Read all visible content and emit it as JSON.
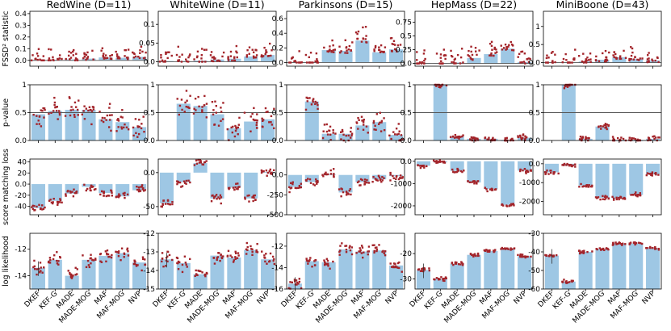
{
  "colors": {
    "bar": "#9ec7e4",
    "point": "#a3242a",
    "axis": "#000000",
    "refline": "#555555"
  },
  "chart_data": {
    "type": "bar",
    "title": "",
    "categories": [
      "DKEF",
      "KEF-G",
      "MADE",
      "MADE-MOG",
      "MAF",
      "MAF-MOG",
      "NVP"
    ],
    "datasets": [
      "RedWine (D=11)",
      "WhiteWine (D=11)",
      "Parkinsons (D=15)",
      "HepMass (D=22)",
      "MiniBoone (D=43)"
    ],
    "metrics": [
      {
        "name": "fssd",
        "ylabel": "FSSD² statistic",
        "panels": [
          {
            "ylim": [
              -0.05,
              0.42
            ],
            "yticks": [
              0.0,
              0.1,
              0.2,
              0.3,
              0.4
            ],
            "ref": 0.0,
            "values": [
              0.004,
              0.005,
              0.008,
              0.015,
              0.025,
              0.022,
              0.03
            ],
            "spread": 0.05
          },
          {
            "ylim": [
              -0.012,
              0.135
            ],
            "yticks": [
              0.0,
              0.05,
              0.1
            ],
            "ref": 0.0,
            "values": [
              0.002,
              0.002,
              0.003,
              0.006,
              0.008,
              0.014,
              0.018
            ],
            "spread": 0.02
          },
          {
            "ylim": [
              -0.05,
              0.7
            ],
            "yticks": [
              0.0,
              0.2,
              0.4,
              0.6
            ],
            "ref": 0.0,
            "values": [
              0.005,
              0.006,
              0.17,
              0.16,
              0.3,
              0.14,
              0.18
            ],
            "spread": 0.12
          },
          {
            "ylim": [
              -0.05,
              0.95
            ],
            "yticks": [
              0.0,
              0.25,
              0.5,
              0.75
            ],
            "ref": 0.0,
            "values": [
              0.008,
              0.006,
              0.018,
              0.1,
              0.17,
              0.27,
              0.025
            ],
            "spread": 0.15
          },
          {
            "ylim": [
              -0.1,
              1.42
            ],
            "yticks": [
              0.0,
              0.5,
              1.0
            ],
            "ref": 0.0,
            "values": [
              0.005,
              0.004,
              0.03,
              0.08,
              0.15,
              0.1,
              0.06
            ],
            "spread": 0.2
          }
        ]
      },
      {
        "name": "pvalue",
        "ylabel": "p-value",
        "panels": [
          {
            "ylim": [
              0.0,
              1.0
            ],
            "yticks": [
              0.0,
              0.5,
              1.0
            ],
            "ref": 0.5,
            "values": [
              0.47,
              0.53,
              0.55,
              0.55,
              0.38,
              0.33,
              0.24
            ],
            "spread": 0.35
          },
          {
            "ylim": [
              0.0,
              1.0
            ],
            "yticks": [
              0.0,
              0.5,
              1.0
            ],
            "ref": 0.5,
            "values": [
              null,
              0.66,
              0.62,
              0.47,
              0.22,
              0.34,
              0.38
            ],
            "spread": 0.35
          },
          {
            "ylim": [
              0.0,
              1.0
            ],
            "yticks": [
              0.0,
              0.5,
              1.0
            ],
            "ref": 0.5,
            "values": [
              null,
              0.7,
              0.12,
              0.12,
              0.27,
              0.33,
              0.1
            ],
            "spread": 0.25
          },
          {
            "ylim": [
              0.0,
              1.0
            ],
            "yticks": [
              0.0,
              0.5,
              1.0
            ],
            "ref": 0.5,
            "values": [
              null,
              1.0,
              0.07,
              0.03,
              0.03,
              0.0,
              0.05
            ],
            "spread": 0.08
          },
          {
            "ylim": [
              0.0,
              1.0
            ],
            "yticks": [
              0.0,
              0.5,
              1.0
            ],
            "ref": 0.5,
            "values": [
              null,
              1.0,
              0.03,
              0.25,
              0.0,
              0.0,
              0.03
            ],
            "spread": 0.08
          }
        ]
      },
      {
        "name": "scorematch",
        "ylabel": "score matching loss",
        "panels": [
          {
            "ylim": [
              -55,
              45
            ],
            "yticks": [
              -40,
              -20,
              0,
              20,
              40
            ],
            "ref": null,
            "values": [
              -43,
              -30,
              -17,
              -5,
              -16,
              -22,
              -11
            ],
            "spread": 10
          },
          {
            "ylim": [
              -62,
              20
            ],
            "yticks": [
              -50,
              0
            ],
            "ref": null,
            "values": [
              -45,
              -14,
              14,
              -38,
              -22,
              -38,
              1
            ],
            "spread": 9
          },
          {
            "ylim": [
              -500,
              200
            ],
            "yticks": [
              -500,
              -250,
              0
            ],
            "ref": null,
            "values": [
              -150,
              -90,
              5,
              -220,
              -90,
              -55,
              -15
            ],
            "spread": 80
          },
          {
            "ylim": [
              -2400,
              100
            ],
            "yticks": [
              -2000,
              -1000,
              0
            ],
            "ref": null,
            "values": [
              -200,
              -50,
              -430,
              -950,
              -1250,
              -1950,
              -420
            ],
            "spread": 130
          },
          {
            "ylim": [
              -2700,
              250
            ],
            "yticks": [
              -2000,
              -1000,
              0
            ],
            "ref": null,
            "values": [
              -450,
              -90,
              -1150,
              -1800,
              -1850,
              -1650,
              -560
            ],
            "spread": 170
          }
        ]
      },
      {
        "name": "loglik",
        "ylabel": "log likelihood",
        "panels": [
          {
            "ylim": [
              -15.0,
              -10.8
            ],
            "yticks": [
              -14,
              -12
            ],
            "ref": null,
            "values": [
              -13.4,
              -12.8,
              -14.0,
              -12.8,
              -12.5,
              -12.3,
              -13.0
            ],
            "spread": 0.8
          },
          {
            "ylim": [
              -15.0,
              -12.0
            ],
            "yticks": [
              -15,
              -14,
              -13,
              -12
            ],
            "ref": null,
            "values": [
              -13.4,
              -13.6,
              -14.2,
              -13.2,
              -13.3,
              -12.9,
              -13.4
            ],
            "spread": 0.6
          },
          {
            "ylim": [
              -16.0,
              -10.8
            ],
            "yticks": [
              -16,
              -14,
              -12
            ],
            "ref": null,
            "values": [
              -15.5,
              -13.4,
              -13.5,
              -12.3,
              -12.5,
              -12.4,
              -13.8
            ],
            "spread": 0.8
          },
          {
            "ylim": [
              -34,
              -12
            ],
            "yticks": [
              -30,
              -20
            ],
            "ref": null,
            "values": [
              -26.5,
              -30.0,
              -24.0,
              -20.5,
              -19.0,
              -18.0,
              -21.0
            ],
            "spread": 1.0
          },
          {
            "ylim": [
              -60,
              -30
            ],
            "yticks": [
              -60,
              -50,
              -40,
              -30
            ],
            "ref": null,
            "values": [
              -42.0,
              -56.0,
              -40.0,
              -38.5,
              -35.5,
              -35.5,
              -38.0
            ],
            "spread": 1.2
          }
        ]
      }
    ]
  }
}
